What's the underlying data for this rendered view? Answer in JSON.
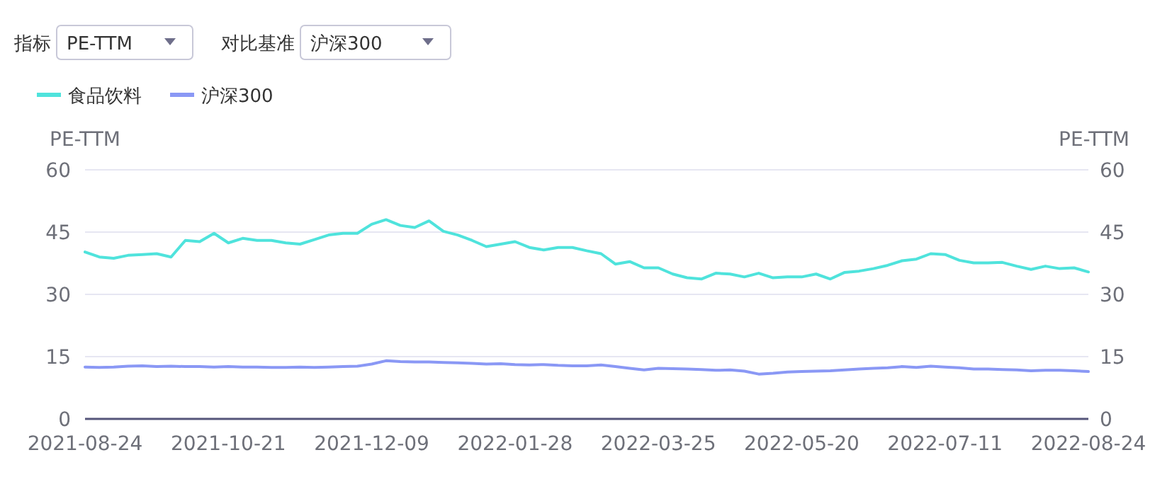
{
  "chart_data": {
    "type": "line",
    "ylabel": "PE-TTM",
    "y2label": "PE-TTM",
    "annotations": [
      "指标",
      "PE-TTM",
      "对比基准",
      "沪深300"
    ],
    "categories": [
      "2021-08-24",
      null,
      null,
      null,
      null,
      null,
      null,
      null,
      null,
      null,
      "2021-10-21",
      null,
      null,
      null,
      null,
      null,
      null,
      null,
      null,
      null,
      "2021-12-09",
      null,
      null,
      null,
      null,
      null,
      null,
      null,
      null,
      null,
      "2022-01-28",
      null,
      null,
      null,
      null,
      null,
      null,
      null,
      null,
      null,
      "2022-03-25",
      null,
      null,
      null,
      null,
      null,
      null,
      null,
      null,
      null,
      "2022-05-20",
      null,
      null,
      null,
      null,
      null,
      null,
      null,
      null,
      null,
      "2022-07-11",
      null,
      null,
      null,
      null,
      null,
      null,
      null,
      null,
      null,
      "2022-08-24"
    ],
    "series": [
      {
        "name": "食品饮料",
        "color": "#4fe3dc",
        "values": [
          40.2,
          39.0,
          38.7,
          39.4,
          39.6,
          39.8,
          39.0,
          43.0,
          42.7,
          44.7,
          42.4,
          43.5,
          43.0,
          43.0,
          42.4,
          42.1,
          43.2,
          44.3,
          44.7,
          44.7,
          46.9,
          48.0,
          46.6,
          46.1,
          47.7,
          45.2,
          44.3,
          43.0,
          41.5,
          42.1,
          42.7,
          41.3,
          40.7,
          41.3,
          41.3,
          40.5,
          39.8,
          37.3,
          37.9,
          36.4,
          36.4,
          34.9,
          34.0,
          33.7,
          35.1,
          34.9,
          34.2,
          35.1,
          34.0,
          34.2,
          34.2,
          34.9,
          33.7,
          35.3,
          35.6,
          36.2,
          37.0,
          38.1,
          38.5,
          39.8,
          39.6,
          38.2,
          37.6,
          37.6,
          37.7,
          36.8,
          36.0,
          36.8,
          36.2,
          36.4,
          35.4
        ]
      },
      {
        "name": "沪深300",
        "color": "#8a98f5",
        "values": [
          12.5,
          12.4,
          12.5,
          12.7,
          12.8,
          12.6,
          12.7,
          12.6,
          12.6,
          12.5,
          12.6,
          12.5,
          12.5,
          12.4,
          12.4,
          12.5,
          12.4,
          12.5,
          12.6,
          12.7,
          13.2,
          14.0,
          13.8,
          13.7,
          13.7,
          13.6,
          13.5,
          13.4,
          13.2,
          13.3,
          13.1,
          13.0,
          13.1,
          12.9,
          12.8,
          12.8,
          13.0,
          12.6,
          12.2,
          11.8,
          12.2,
          12.1,
          12.0,
          11.9,
          11.7,
          11.8,
          11.5,
          10.8,
          11.0,
          11.3,
          11.4,
          11.5,
          11.6,
          11.8,
          12.0,
          12.2,
          12.3,
          12.6,
          12.4,
          12.7,
          12.5,
          12.3,
          12.0,
          12.0,
          11.9,
          11.8,
          11.6,
          11.7,
          11.7,
          11.6,
          11.4
        ]
      }
    ],
    "ylim": [
      0,
      60
    ],
    "yticks": [
      0,
      15,
      30,
      45,
      60
    ],
    "y2lim": [
      0,
      60
    ],
    "y2ticks": [
      0,
      15,
      30,
      45,
      60
    ],
    "grid": "y",
    "legend": "top left",
    "marker": "none",
    "line_style": "solid"
  }
}
